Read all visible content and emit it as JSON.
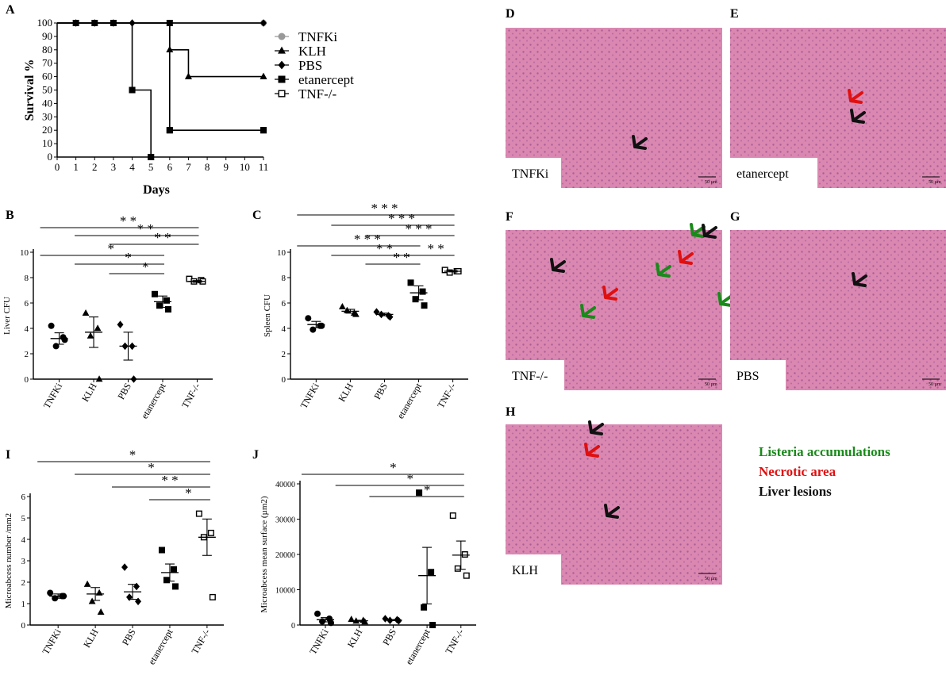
{
  "panel_letters": [
    "A",
    "B",
    "C",
    "D",
    "E",
    "F",
    "G",
    "H",
    "I",
    "J"
  ],
  "histology": [
    {
      "letter": "D",
      "label": "TNFKi",
      "scale": "50 µm"
    },
    {
      "letter": "E",
      "label": "etanercept",
      "scale": "50 µm"
    },
    {
      "letter": "F",
      "label": "TNF-/-",
      "scale": "50 µm"
    },
    {
      "letter": "G",
      "label": "PBS",
      "scale": "50 µm"
    },
    {
      "letter": "H",
      "label": "KLH",
      "scale": "50 µm"
    }
  ],
  "arrow_legend": [
    {
      "label": "Listeria accumulations",
      "color": "#1a8a1a"
    },
    {
      "label": "Necrotic area",
      "color": "#e01010"
    },
    {
      "label": "Liver lesions",
      "color": "#111111"
    }
  ],
  "chart_data": [
    {
      "id": "A",
      "type": "line",
      "step": true,
      "xlabel": "Days",
      "ylabel": "Survival %",
      "xlim": [
        0,
        11
      ],
      "ylim": [
        0,
        100
      ],
      "xticks": [
        0,
        1,
        2,
        3,
        4,
        5,
        6,
        7,
        8,
        9,
        10,
        11
      ],
      "yticks": [
        0,
        10,
        20,
        30,
        40,
        50,
        60,
        70,
        80,
        90,
        100
      ],
      "legend_position": "right",
      "series": [
        {
          "name": "TNFKi",
          "marker": "circle",
          "color": "#999999",
          "x": [
            0,
            11
          ],
          "y": [
            100,
            100
          ]
        },
        {
          "name": "KLH",
          "marker": "triangle",
          "color": "#000000",
          "x": [
            0,
            6,
            7,
            11
          ],
          "y": [
            100,
            80,
            60,
            60
          ]
        },
        {
          "name": "PBS",
          "marker": "diamond",
          "color": "#000000",
          "x": [
            0,
            1,
            2,
            3,
            4,
            11
          ],
          "y": [
            100,
            100,
            100,
            100,
            100,
            100
          ]
        },
        {
          "name": "etanercept",
          "marker": "square",
          "color": "#000000",
          "x": [
            0,
            4,
            5
          ],
          "y": [
            100,
            50,
            0
          ]
        },
        {
          "name": "TNF-/-",
          "marker": "square-open",
          "color": "#000000",
          "x": [
            0,
            6,
            11
          ],
          "y": [
            100,
            20,
            20
          ]
        }
      ]
    },
    {
      "id": "B",
      "type": "scatter",
      "ylabel": "Liver CFU",
      "ylim": [
        0,
        10
      ],
      "yticks": [
        0,
        2,
        4,
        6,
        8,
        10
      ],
      "categories": [
        "TNFKi",
        "KLH",
        "PBS",
        "etanercept",
        "TNF-/-"
      ],
      "markers": [
        "circle",
        "triangle",
        "diamond",
        "square",
        "square-open"
      ],
      "points": [
        [
          4.2,
          3.3,
          2.6,
          3.1
        ],
        [
          5.2,
          4.0,
          3.4,
          0
        ],
        [
          4.3,
          2.6,
          2.6,
          0
        ],
        [
          6.7,
          6.2,
          5.8,
          5.5
        ],
        [
          7.9,
          7.8,
          7.7,
          7.7
        ]
      ],
      "mean": [
        3.2,
        3.7,
        2.6,
        6.1,
        7.7
      ],
      "sem": [
        0.45,
        1.2,
        1.1,
        0.45,
        0.07
      ],
      "significance": [
        {
          "from": 0,
          "to": 4,
          "label": "* *"
        },
        {
          "from": 1,
          "to": 4,
          "label": "* *"
        },
        {
          "from": 2,
          "to": 4,
          "label": "* *"
        },
        {
          "from": 0,
          "to": 3,
          "label": "*"
        },
        {
          "from": 1,
          "to": 3,
          "label": "*"
        },
        {
          "from": 2,
          "to": 3,
          "label": "*"
        }
      ]
    },
    {
      "id": "C",
      "type": "scatter",
      "ylabel": "Spleen CFU",
      "ylim": [
        0,
        10
      ],
      "yticks": [
        0,
        2,
        4,
        6,
        8,
        10
      ],
      "categories": [
        "TNFKi",
        "KLH",
        "PBS",
        "etanercept",
        "TNF-/-"
      ],
      "markers": [
        "circle",
        "triangle",
        "diamond",
        "square",
        "square-open"
      ],
      "points": [
        [
          4.8,
          4.2,
          3.9,
          4.2
        ],
        [
          5.7,
          5.2,
          5.4,
          5.1
        ],
        [
          5.3,
          5.0,
          5.1,
          4.9
        ],
        [
          7.6,
          6.9,
          6.3,
          5.8
        ],
        [
          8.6,
          8.5,
          8.4,
          8.5
        ]
      ],
      "mean": [
        4.3,
        5.35,
        5.1,
        6.8,
        8.5
      ],
      "sem": [
        0.25,
        0.15,
        0.1,
        0.55,
        0.05
      ],
      "significance": [
        {
          "from": 0,
          "to": 4,
          "label": "* * *"
        },
        {
          "from": 1,
          "to": 4,
          "label": "* * *"
        },
        {
          "from": 2,
          "to": 4,
          "label": "* * *"
        },
        {
          "from": 0,
          "to": 3,
          "label": "* * *"
        },
        {
          "from": 1,
          "to": 3,
          "label": "* *"
        },
        {
          "from": 2,
          "to": 3,
          "label": "* *"
        },
        {
          "from": 3,
          "to": 4,
          "label": "* *"
        }
      ]
    },
    {
      "id": "I",
      "type": "scatter",
      "ylabel": "Microabcess number /mm2",
      "ylim": [
        0,
        6
      ],
      "yticks": [
        0,
        1,
        2,
        3,
        4,
        5,
        6
      ],
      "categories": [
        "TNFKi",
        "KLH",
        "PBS",
        "etanercept",
        "TNF-/-"
      ],
      "markers": [
        "circle",
        "triangle",
        "diamond",
        "square",
        "square-open"
      ],
      "points": [
        [
          1.5,
          1.35,
          1.25,
          1.35
        ],
        [
          1.9,
          1.5,
          1.1,
          0.6
        ],
        [
          2.7,
          1.8,
          1.3,
          1.1
        ],
        [
          3.5,
          2.6,
          2.1,
          1.8
        ],
        [
          5.2,
          4.3,
          4.1,
          1.3
        ]
      ],
      "mean": [
        1.35,
        1.45,
        1.55,
        2.45,
        4.1
      ],
      "sem": [
        0.1,
        0.3,
        0.35,
        0.4,
        0.85
      ],
      "significance": [
        {
          "from": 0,
          "to": 4,
          "label": "*"
        },
        {
          "from": 1,
          "to": 4,
          "label": "*"
        },
        {
          "from": 2,
          "to": 4,
          "label": "* *"
        },
        {
          "from": 3,
          "to": 4,
          "label": "*"
        }
      ]
    },
    {
      "id": "J",
      "type": "scatter",
      "ylabel": "Microabcess mean surface (µm2)",
      "ylim": [
        0,
        40000
      ],
      "yticks": [
        0,
        10000,
        20000,
        30000,
        40000
      ],
      "categories": [
        "TNFKi",
        "KLH",
        "PBS",
        "etanercept",
        "TNF-/-"
      ],
      "markers": [
        "circle",
        "triangle",
        "diamond",
        "square",
        "square-open"
      ],
      "points": [
        [
          3200,
          1800,
          1000,
          600
        ],
        [
          1600,
          1300,
          1100,
          900
        ],
        [
          1800,
          1500,
          1300,
          1200
        ],
        [
          37500,
          15000,
          5000,
          0
        ],
        [
          31000,
          20000,
          16000,
          14000
        ]
      ],
      "mean": [
        1500,
        1200,
        1400,
        14000,
        19800
      ],
      "sem": [
        600,
        150,
        150,
        8000,
        4000
      ],
      "significance": [
        {
          "from": 0,
          "to": 4,
          "label": "*"
        },
        {
          "from": 1,
          "to": 4,
          "label": "*"
        },
        {
          "from": 2,
          "to": 4,
          "label": "*"
        }
      ]
    }
  ]
}
